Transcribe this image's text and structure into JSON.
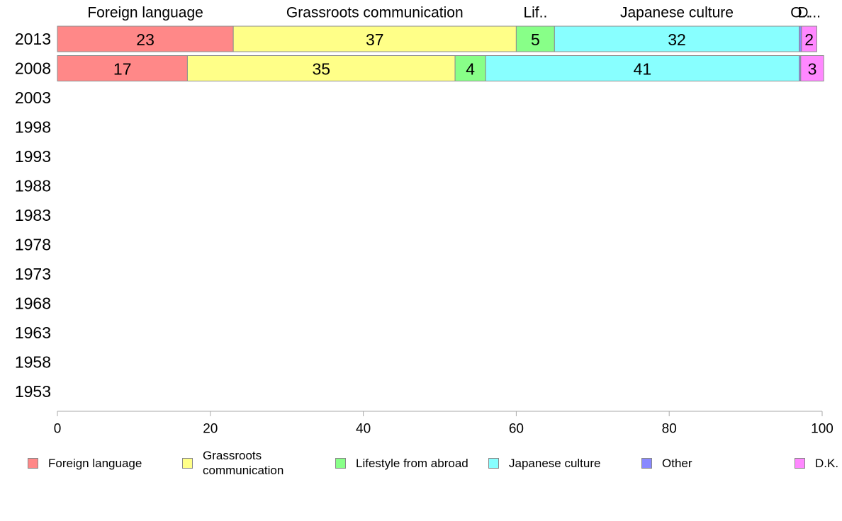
{
  "chart_data": {
    "type": "bar",
    "orientation": "horizontal",
    "stacked": true,
    "categories": [
      "2013",
      "2008",
      "2003",
      "1998",
      "1993",
      "1988",
      "1983",
      "1978",
      "1973",
      "1968",
      "1963",
      "1958",
      "1953"
    ],
    "series": [
      {
        "name": "Foreign language",
        "top_label": "Foreign language",
        "color": "#ff8888",
        "values": [
          23,
          17,
          null,
          null,
          null,
          null,
          null,
          null,
          null,
          null,
          null,
          null,
          null
        ]
      },
      {
        "name": "Grassroots communication",
        "top_label": "Grassroots communication",
        "color": "#ffff88",
        "values": [
          37,
          35,
          null,
          null,
          null,
          null,
          null,
          null,
          null,
          null,
          null,
          null,
          null
        ]
      },
      {
        "name": "Lifestyle from abroad",
        "top_label": "Lif..",
        "color": "#88ff88",
        "values": [
          5,
          4,
          null,
          null,
          null,
          null,
          null,
          null,
          null,
          null,
          null,
          null,
          null
        ]
      },
      {
        "name": "Japanese culture",
        "top_label": "Japanese culture",
        "color": "#88ffff",
        "values": [
          32,
          41,
          null,
          null,
          null,
          null,
          null,
          null,
          null,
          null,
          null,
          null,
          null
        ]
      },
      {
        "name": "Other",
        "top_label": "O..",
        "color": "#8888ff",
        "values": [
          0.3,
          0.2,
          null,
          null,
          null,
          null,
          null,
          null,
          null,
          null,
          null,
          null,
          null
        ]
      },
      {
        "name": "D.K.",
        "top_label": "D...",
        "color": "#ff88ff",
        "values": [
          2,
          3,
          null,
          null,
          null,
          null,
          null,
          null,
          null,
          null,
          null,
          null,
          null
        ]
      }
    ],
    "xlim": [
      0,
      100
    ],
    "xticks": [
      0,
      20,
      40,
      60,
      80,
      100
    ],
    "grid": false,
    "legend_position": "bottom"
  },
  "legend": {
    "items": [
      {
        "label": "Foreign language",
        "color": "#ff8888"
      },
      {
        "label": "Grassroots communication",
        "color": "#ffff88"
      },
      {
        "label": "Lifestyle from abroad",
        "color": "#88ff88"
      },
      {
        "label": "Japanese culture",
        "color": "#88ffff"
      },
      {
        "label": "Other",
        "color": "#8888ff"
      },
      {
        "label": "D.K.",
        "color": "#ff88ff"
      }
    ]
  }
}
